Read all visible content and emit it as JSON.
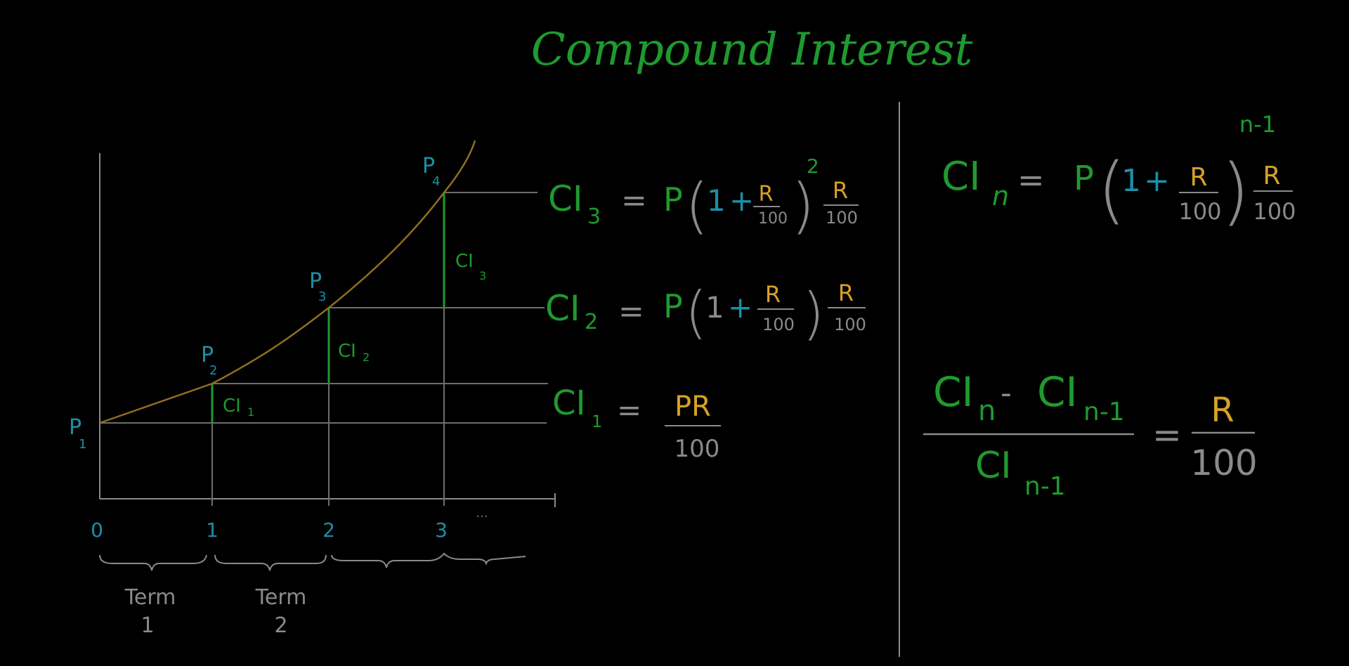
{
  "title": "Compound Interest",
  "colors": {
    "background": "#000000",
    "green": "#1f9a2e",
    "blue": "#1c8fa6",
    "orange": "#d7a126",
    "gray": "#8a8a8a",
    "curve": "#8f6f1f"
  },
  "graph": {
    "principals": [
      {
        "label": "P",
        "sub": "1"
      },
      {
        "label": "P",
        "sub": "2"
      },
      {
        "label": "P",
        "sub": "3"
      },
      {
        "label": "P",
        "sub": "4"
      }
    ],
    "interest_labels": [
      {
        "label": "CI",
        "sub": "1"
      },
      {
        "label": "CI",
        "sub": "2"
      },
      {
        "label": "CI",
        "sub": "3"
      }
    ],
    "x_ticks": [
      "0",
      "1",
      "2",
      "3",
      "..."
    ],
    "terms": [
      {
        "word": "Term",
        "num": "1"
      },
      {
        "word": "Term",
        "num": "2"
      }
    ]
  },
  "equations": {
    "ci3": {
      "lhs": "CI",
      "sub": "3",
      "eq": "=",
      "p": "P",
      "one": "1",
      "plus": "+",
      "r": "R",
      "hundred": "100",
      "exp": "2"
    },
    "ci2": {
      "lhs": "CI",
      "sub": "2",
      "eq": "=",
      "p": "P",
      "one": "1",
      "plus": "+",
      "r": "R",
      "hundred": "100"
    },
    "ci1": {
      "lhs": "CI",
      "sub": "1",
      "eq": "=",
      "num": "PR",
      "hundred": "100"
    },
    "cin": {
      "lhs": "CI",
      "sub": "n",
      "eq": "=",
      "p": "P",
      "one": "1",
      "plus": "+",
      "r": "R",
      "hundred": "100",
      "exp": "n-1"
    },
    "ratio": {
      "ci": "CI",
      "sub_n": "n",
      "minus": "-",
      "sub_n1": "n-1",
      "eq": "=",
      "r": "R",
      "hundred": "100"
    }
  }
}
